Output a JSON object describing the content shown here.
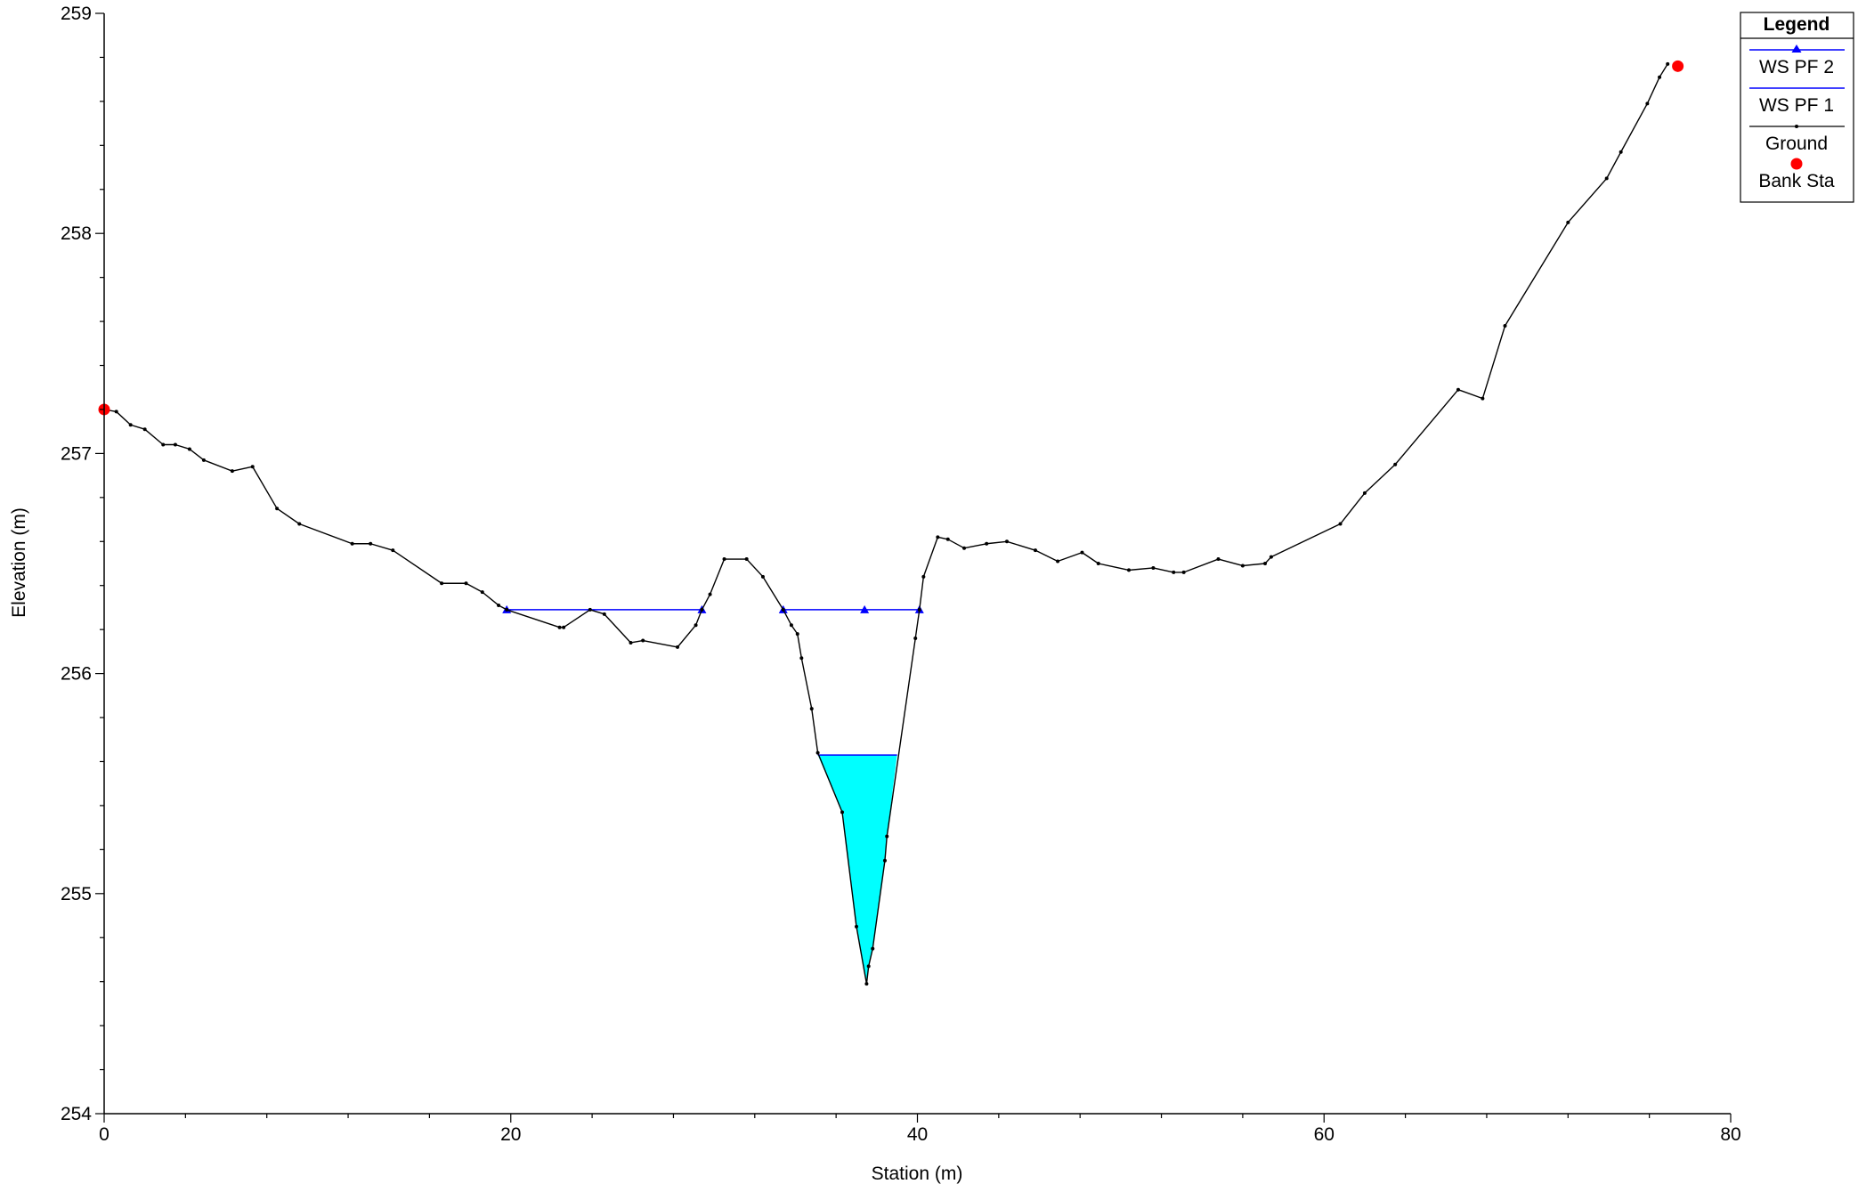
{
  "chart_data": {
    "type": "line",
    "xlabel": "Station (m)",
    "ylabel": "Elevation (m)",
    "xlim": [
      0,
      80
    ],
    "ylim": [
      254,
      259
    ],
    "x_ticks": [
      0,
      20,
      40,
      60,
      80
    ],
    "y_ticks": [
      254,
      255,
      256,
      257,
      258,
      259
    ],
    "x_tick_labels": [
      "0",
      "20",
      "40",
      "60",
      "80"
    ],
    "y_tick_labels": [
      "254",
      "255",
      "256",
      "257",
      "258",
      "259"
    ],
    "grid": false,
    "legend": {
      "title": "Legend",
      "placement": "top-right",
      "entries": [
        "WS PF 2",
        "WS PF 1",
        "Ground",
        "Bank Sta"
      ]
    },
    "colors": {
      "ws_pf2": "#0000ff",
      "ws_pf1": "#0000ff",
      "ground": "#000000",
      "bank": "#ff0000",
      "water_fill": "#00ffff"
    },
    "series": [
      {
        "name": "Ground",
        "points": [
          [
            0,
            257.2
          ],
          [
            0.6,
            257.19
          ],
          [
            1.3,
            257.13
          ],
          [
            2.0,
            257.11
          ],
          [
            2.9,
            257.04
          ],
          [
            3.5,
            257.04
          ],
          [
            4.2,
            257.02
          ],
          [
            4.9,
            256.97
          ],
          [
            6.3,
            256.92
          ],
          [
            7.3,
            256.94
          ],
          [
            8.5,
            256.75
          ],
          [
            9.6,
            256.68
          ],
          [
            12.2,
            256.59
          ],
          [
            13.1,
            256.59
          ],
          [
            14.2,
            256.56
          ],
          [
            16.6,
            256.41
          ],
          [
            17.8,
            256.41
          ],
          [
            18.6,
            256.37
          ],
          [
            19.4,
            256.31
          ],
          [
            19.8,
            256.29
          ],
          [
            22.4,
            256.21
          ],
          [
            22.6,
            256.21
          ],
          [
            23.9,
            256.29
          ],
          [
            24.6,
            256.27
          ],
          [
            25.9,
            256.14
          ],
          [
            26.5,
            256.15
          ],
          [
            28.2,
            256.12
          ],
          [
            29.1,
            256.22
          ],
          [
            29.4,
            256.29
          ],
          [
            29.8,
            256.36
          ],
          [
            30.5,
            256.52
          ],
          [
            31.6,
            256.52
          ],
          [
            32.4,
            256.44
          ],
          [
            33.4,
            256.29
          ],
          [
            33.8,
            256.22
          ],
          [
            34.1,
            256.18
          ],
          [
            34.3,
            256.07
          ],
          [
            34.8,
            255.84
          ],
          [
            35.1,
            255.64
          ],
          [
            36.3,
            255.37
          ],
          [
            37.0,
            254.85
          ],
          [
            37.5,
            254.59
          ],
          [
            37.6,
            254.67
          ],
          [
            37.8,
            254.75
          ],
          [
            38.4,
            255.15
          ],
          [
            38.5,
            255.26
          ],
          [
            39.9,
            256.16
          ],
          [
            40.1,
            256.29
          ],
          [
            40.3,
            256.44
          ],
          [
            41.0,
            256.62
          ],
          [
            41.5,
            256.61
          ],
          [
            42.3,
            256.57
          ],
          [
            43.4,
            256.59
          ],
          [
            44.4,
            256.6
          ],
          [
            45.8,
            256.56
          ],
          [
            46.9,
            256.51
          ],
          [
            48.1,
            256.55
          ],
          [
            48.9,
            256.5
          ],
          [
            50.4,
            256.47
          ],
          [
            51.6,
            256.48
          ],
          [
            52.6,
            256.46
          ],
          [
            53.1,
            256.46
          ],
          [
            54.8,
            256.52
          ],
          [
            56.0,
            256.49
          ],
          [
            57.1,
            256.5
          ],
          [
            57.4,
            256.53
          ],
          [
            60.8,
            256.68
          ],
          [
            62.0,
            256.82
          ],
          [
            63.5,
            256.95
          ],
          [
            66.6,
            257.29
          ],
          [
            67.8,
            257.25
          ],
          [
            68.9,
            257.58
          ],
          [
            72.0,
            258.05
          ],
          [
            73.9,
            258.25
          ],
          [
            74.6,
            258.37
          ],
          [
            75.9,
            258.59
          ],
          [
            76.5,
            258.71
          ],
          [
            76.9,
            258.77
          ]
        ]
      },
      {
        "name": "WS PF 2",
        "elevation": 256.29,
        "segments": [
          [
            19.8,
            29.4
          ],
          [
            33.4,
            40.1
          ]
        ],
        "markers": [
          19.8,
          29.4,
          33.4,
          37.4,
          40.1
        ]
      },
      {
        "name": "WS PF 1",
        "elevation": 255.63,
        "segments": [
          [
            35.1,
            39.0
          ]
        ]
      },
      {
        "name": "Bank Sta",
        "points": [
          [
            0,
            257.2
          ],
          [
            77.4,
            258.76
          ]
        ]
      }
    ]
  }
}
